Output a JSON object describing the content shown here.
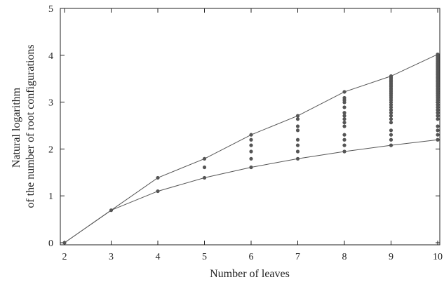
{
  "chart_data": {
    "type": "scatter",
    "xlabel": "Number of leaves",
    "ylabel_lines": [
      "Natural logarithm",
      "of the number of root configurations"
    ],
    "xlim": [
      2,
      10
    ],
    "ylim": [
      0,
      5
    ],
    "xticks": [
      2,
      3,
      4,
      5,
      6,
      7,
      8,
      9,
      10
    ],
    "yticks": [
      0,
      1,
      2,
      3,
      4,
      5
    ],
    "grid": false,
    "colors": {
      "line": "#555555",
      "point": "#555555",
      "axis": "#222222"
    },
    "upper_line": [
      [
        2,
        0
      ],
      [
        3,
        0.693
      ],
      [
        4,
        1.386
      ],
      [
        5,
        1.792
      ],
      [
        6,
        2.303
      ],
      [
        7,
        2.708
      ],
      [
        8,
        3.219
      ],
      [
        9,
        3.555
      ],
      [
        10,
        4.02
      ]
    ],
    "lower_line": [
      [
        2,
        0
      ],
      [
        3,
        0.693
      ],
      [
        4,
        1.099
      ],
      [
        5,
        1.386
      ],
      [
        6,
        1.609
      ],
      [
        7,
        1.792
      ],
      [
        8,
        1.946
      ],
      [
        9,
        2.079
      ],
      [
        10,
        2.197
      ]
    ],
    "points": [
      {
        "x": 2,
        "ys": [
          0
        ]
      },
      {
        "x": 3,
        "ys": [
          0.693
        ]
      },
      {
        "x": 4,
        "ys": [
          1.099,
          1.386
        ]
      },
      {
        "x": 5,
        "ys": [
          1.386,
          1.609,
          1.792
        ]
      },
      {
        "x": 6,
        "ys": [
          1.609,
          1.792,
          1.946,
          2.079,
          2.197,
          2.303
        ]
      },
      {
        "x": 7,
        "ys": [
          1.792,
          1.946,
          2.079,
          2.197,
          2.398,
          2.485,
          2.639,
          2.708
        ]
      },
      {
        "x": 8,
        "ys": [
          1.946,
          2.079,
          2.197,
          2.303,
          2.485,
          2.565,
          2.639,
          2.708,
          2.773,
          2.89,
          2.996,
          3.045,
          3.091,
          3.219
        ]
      },
      {
        "x": 9,
        "ys": [
          2.079,
          2.197,
          2.303,
          2.398,
          2.565,
          2.639,
          2.708,
          2.773,
          2.833,
          2.89,
          2.944,
          2.996,
          3.045,
          3.091,
          3.135,
          3.178,
          3.219,
          3.258,
          3.296,
          3.332,
          3.367,
          3.401,
          3.434,
          3.466,
          3.497,
          3.526,
          3.555
        ]
      },
      {
        "x": 10,
        "ys": [
          2.197,
          2.303,
          2.398,
          2.485,
          2.639,
          2.708,
          2.773,
          2.833,
          2.89,
          2.944,
          2.996,
          3.045,
          3.091,
          3.135,
          3.178,
          3.219,
          3.258,
          3.296,
          3.332,
          3.367,
          3.401,
          3.434,
          3.466,
          3.497,
          3.526,
          3.555,
          3.584,
          3.611,
          3.638,
          3.664,
          3.689,
          3.714,
          3.738,
          3.761,
          3.784,
          3.807,
          3.829,
          3.85,
          3.871,
          3.892,
          3.912,
          3.932,
          3.951,
          3.97,
          3.989,
          4.007,
          4.02
        ]
      }
    ]
  }
}
